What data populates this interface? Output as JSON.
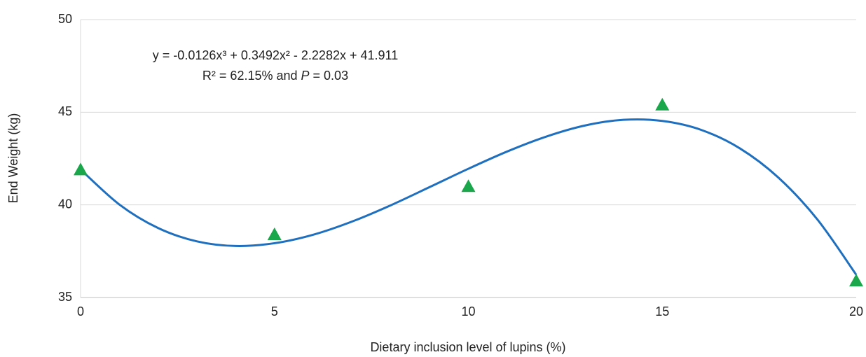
{
  "chart_data": {
    "type": "scatter",
    "xlabel": "Dietary inclusion level of lupins (%)",
    "ylabel": "End Weight (kg)",
    "annotations": [
      {
        "parts": [
          "y = -0.0126x³ + 0.3492x² - 2.2282x + 41.911"
        ]
      },
      {
        "parts": [
          "R² = 62.15% and ",
          "P",
          " = 0.03"
        ]
      }
    ],
    "points": {
      "x": [
        0,
        5,
        10,
        15,
        20
      ],
      "values": [
        41.9,
        38.4,
        41.0,
        45.4,
        35.9
      ],
      "color": "#1aa64a"
    },
    "trendline": {
      "x": [
        0,
        1,
        2,
        3,
        4,
        5,
        6,
        7,
        8,
        9,
        10,
        11,
        12,
        13,
        14,
        15,
        16,
        17,
        18,
        19,
        20
      ],
      "values": [
        41.91,
        40.02,
        38.75,
        38.03,
        37.78,
        37.93,
        38.39,
        39.1,
        39.98,
        40.96,
        41.95,
        42.88,
        43.68,
        44.28,
        44.59,
        44.53,
        44.05,
        43.05,
        41.46,
        39.21,
        36.23
      ],
      "color": "#1f6fbf"
    },
    "xlim": [
      0,
      20
    ],
    "xticks": [
      0,
      5,
      10,
      15,
      20
    ],
    "ylim": [
      35,
      50
    ],
    "yticks": [
      35,
      40,
      45,
      50
    ],
    "grid": true
  }
}
